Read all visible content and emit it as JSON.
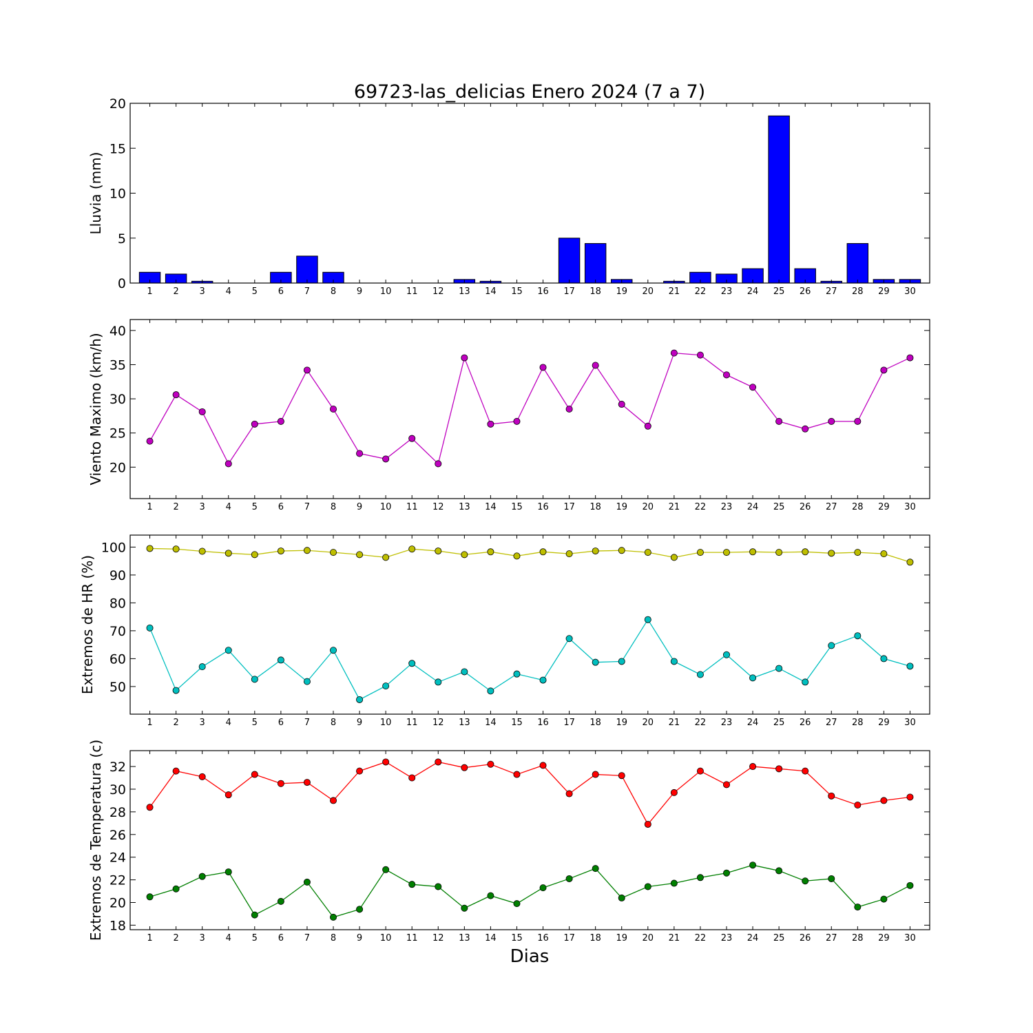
{
  "figure": {
    "title": "69723-las_delicias Enero 2024  (7 a 7)",
    "xlabel": "Dias"
  },
  "chart_data": [
    {
      "type": "bar",
      "ylabel": "Lluvia (mm)",
      "categories": [
        "1",
        "2",
        "3",
        "4",
        "5",
        "6",
        "7",
        "8",
        "9",
        "10",
        "11",
        "12",
        "13",
        "14",
        "15",
        "16",
        "17",
        "18",
        "19",
        "20",
        "21",
        "22",
        "23",
        "24",
        "25",
        "26",
        "27",
        "28",
        "29",
        "30"
      ],
      "yticks": [
        0,
        5,
        10,
        15,
        20
      ],
      "ylim": [
        0,
        20
      ],
      "series": [
        {
          "color": "#0000ff",
          "values": [
            1.2,
            1.0,
            0.2,
            0,
            0,
            1.2,
            3.0,
            1.2,
            0,
            0,
            0,
            0,
            0.4,
            0.2,
            0,
            0,
            5.0,
            4.4,
            0.4,
            0,
            0.2,
            1.2,
            1.0,
            1.6,
            18.6,
            1.6,
            0.2,
            4.4,
            0.4,
            0.4
          ]
        }
      ]
    },
    {
      "type": "line",
      "ylabel": "Viento Maximo (km/h)",
      "categories": [
        "1",
        "2",
        "3",
        "4",
        "5",
        "6",
        "7",
        "8",
        "9",
        "10",
        "11",
        "12",
        "13",
        "14",
        "15",
        "16",
        "17",
        "18",
        "19",
        "20",
        "21",
        "22",
        "23",
        "24",
        "25",
        "26",
        "27",
        "28",
        "29",
        "30"
      ],
      "yticks": [
        20,
        25,
        30,
        35,
        40
      ],
      "ylim": [
        15.4,
        41.6
      ],
      "series": [
        {
          "color": "#bf00bf",
          "values": [
            23.8,
            30.6,
            28.1,
            20.5,
            26.3,
            26.7,
            34.2,
            28.5,
            22.0,
            21.2,
            24.2,
            20.5,
            36.0,
            26.3,
            26.7,
            34.6,
            28.5,
            34.9,
            29.2,
            26.0,
            36.7,
            36.4,
            33.5,
            31.7,
            26.7,
            25.6,
            26.7,
            26.7,
            34.2,
            36.0
          ]
        }
      ]
    },
    {
      "type": "line",
      "ylabel": "Extremos de HR (%)",
      "categories": [
        "1",
        "2",
        "3",
        "4",
        "5",
        "6",
        "7",
        "8",
        "9",
        "10",
        "11",
        "12",
        "13",
        "14",
        "15",
        "16",
        "17",
        "18",
        "19",
        "20",
        "21",
        "22",
        "23",
        "24",
        "25",
        "26",
        "27",
        "28",
        "29",
        "30"
      ],
      "yticks": [
        50,
        60,
        70,
        80,
        90,
        100
      ],
      "ylim": [
        40.1,
        104.3
      ],
      "series": [
        {
          "color": "#bfbf00",
          "values": [
            99.5,
            99.3,
            98.5,
            97.8,
            97.3,
            98.6,
            98.8,
            98.1,
            97.3,
            96.3,
            99.3,
            98.6,
            97.3,
            98.3,
            96.8,
            98.3,
            97.6,
            98.6,
            98.8,
            98.1,
            96.3,
            98.1,
            98.1,
            98.3,
            98.1,
            98.3,
            97.8,
            98.1,
            97.6,
            94.6
          ]
        },
        {
          "color": "#00bfbf",
          "values": [
            71.0,
            48.6,
            57.1,
            63.0,
            52.6,
            59.5,
            51.8,
            63.0,
            45.3,
            50.2,
            58.3,
            51.6,
            55.3,
            48.4,
            54.5,
            52.3,
            67.2,
            58.7,
            59.0,
            74.0,
            59.0,
            54.3,
            61.4,
            53.1,
            56.5,
            51.6,
            64.7,
            68.2,
            60.0,
            57.3
          ]
        }
      ]
    },
    {
      "type": "line",
      "ylabel": "Extremos de Temperatura (c)",
      "categories": [
        "1",
        "2",
        "3",
        "4",
        "5",
        "6",
        "7",
        "8",
        "9",
        "10",
        "11",
        "12",
        "13",
        "14",
        "15",
        "16",
        "17",
        "18",
        "19",
        "20",
        "21",
        "22",
        "23",
        "24",
        "25",
        "26",
        "27",
        "28",
        "29",
        "30"
      ],
      "yticks": [
        18,
        20,
        22,
        24,
        26,
        28,
        30,
        32
      ],
      "ylim": [
        17.6,
        33.4
      ],
      "series": [
        {
          "color": "#ff0000",
          "values": [
            28.4,
            31.6,
            31.1,
            29.5,
            31.3,
            30.5,
            30.6,
            29.0,
            31.6,
            32.4,
            31.0,
            32.4,
            31.9,
            32.2,
            31.3,
            32.1,
            29.6,
            31.3,
            31.2,
            26.9,
            29.7,
            31.6,
            30.4,
            32.0,
            31.8,
            31.6,
            29.4,
            28.6,
            29.0,
            29.3
          ]
        },
        {
          "color": "#007f00",
          "values": [
            20.5,
            21.2,
            22.3,
            22.7,
            18.9,
            20.1,
            21.8,
            18.7,
            19.4,
            22.9,
            21.6,
            21.4,
            19.5,
            20.6,
            19.9,
            21.3,
            22.1,
            23.0,
            20.4,
            21.4,
            21.7,
            22.2,
            22.6,
            23.3,
            22.8,
            21.9,
            22.1,
            19.6,
            20.3,
            21.5
          ]
        }
      ]
    }
  ]
}
